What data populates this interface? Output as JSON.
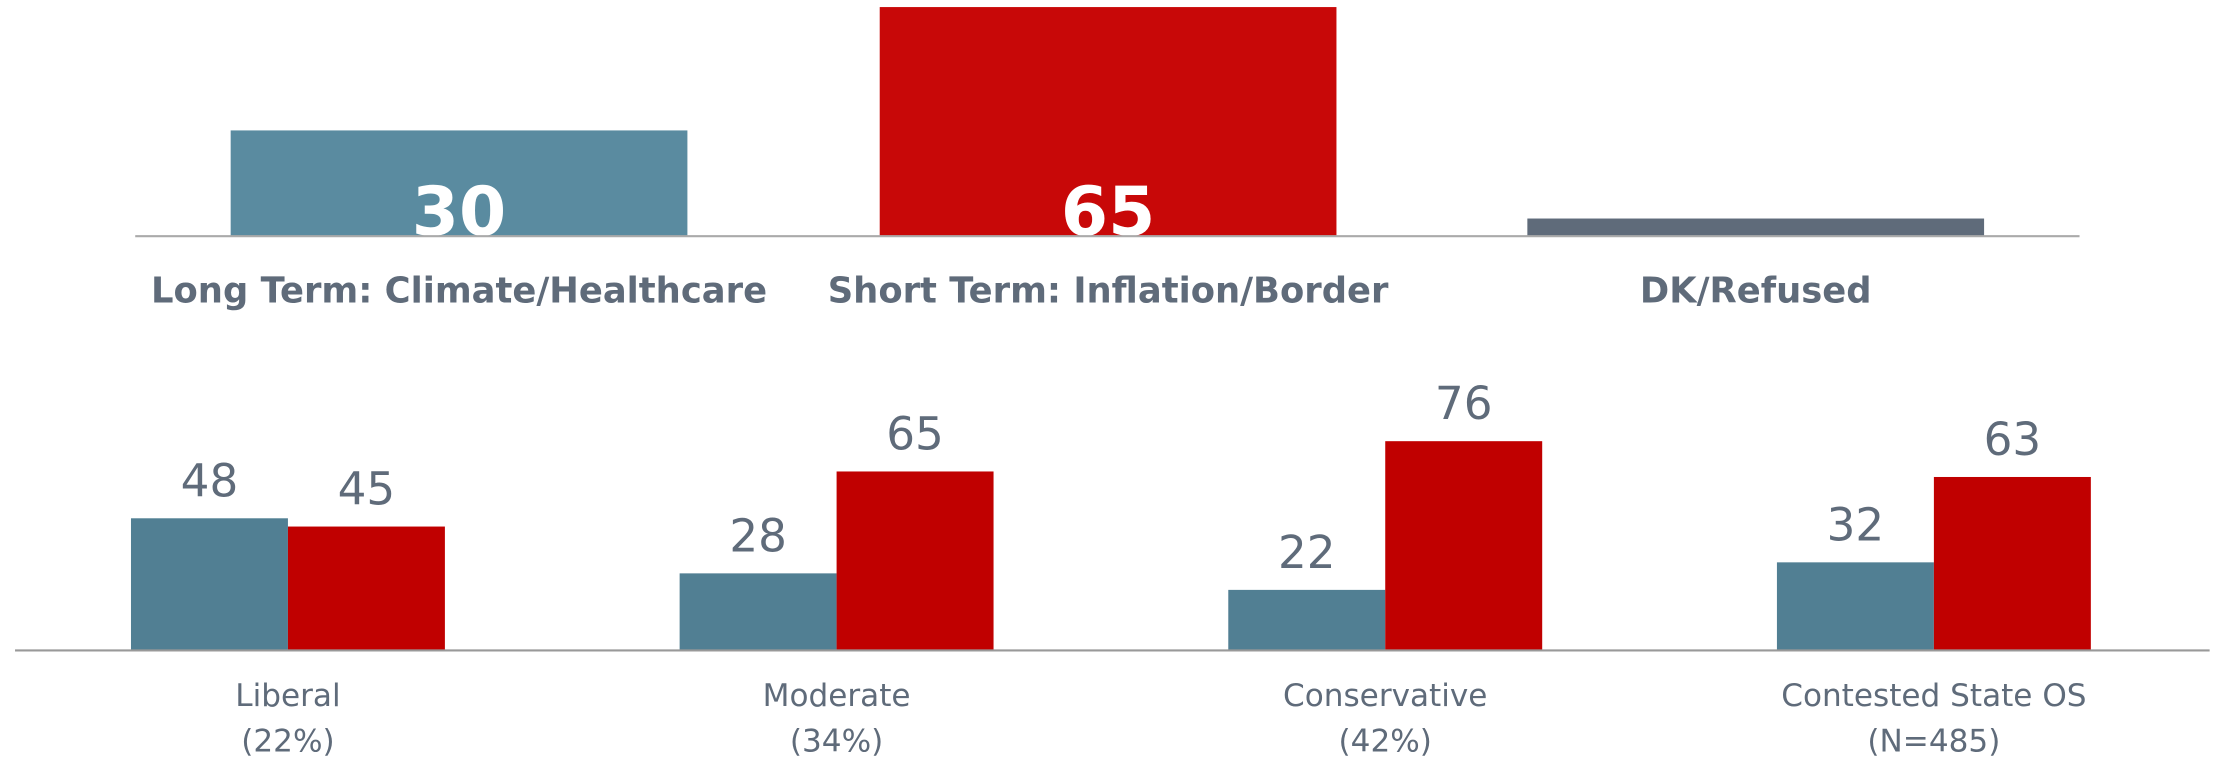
{
  "chart_data": [
    {
      "type": "bar",
      "categories": [
        "Long Term: Climate/Healthcare",
        "Short Term: Inflation/Border",
        "DK/Refused"
      ],
      "values": [
        30,
        65,
        5
      ],
      "colors": [
        "#5a8ba0",
        "#c80808",
        "#5f6b7a"
      ],
      "ylim": [
        0,
        65
      ]
    },
    {
      "type": "grouped_bar",
      "categories": [
        "Liberal",
        "Moderate",
        "Conservative",
        "Contested State OS"
      ],
      "category_notes": [
        "(22%)",
        "(34%)",
        "(42%)",
        "(N=485)"
      ],
      "series": [
        {
          "color": "#517f93",
          "values": [
            48,
            28,
            22,
            32
          ]
        },
        {
          "color": "#c00000",
          "values": [
            45,
            65,
            76,
            63
          ]
        }
      ],
      "ylim": [
        0,
        76
      ]
    }
  ]
}
